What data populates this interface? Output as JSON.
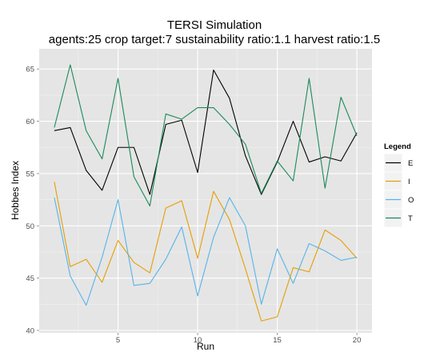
{
  "chart_data": {
    "type": "line",
    "title": "TERSI Simulation",
    "subtitle": "agents:25 crop target:7 sustainability ratio:1.1 harvest ratio:1.5",
    "xlabel": "Run",
    "ylabel": "Hobbes Index",
    "xlim": [
      0.05,
      20.95
    ],
    "ylim": [
      39.77,
      66.93
    ],
    "x_ticks": [
      5,
      10,
      15,
      20
    ],
    "y_ticks": [
      40,
      45,
      50,
      55,
      60,
      65
    ],
    "grid": true,
    "legend": {
      "title": "Legend",
      "position": "right"
    },
    "x": [
      1,
      2,
      3,
      4,
      5,
      6,
      7,
      8,
      9,
      10,
      11,
      12,
      13,
      14,
      15,
      16,
      17,
      18,
      19,
      20
    ],
    "series": [
      {
        "name": "E",
        "color": "#000000",
        "values": [
          59.1,
          59.4,
          55.3,
          53.4,
          57.5,
          57.5,
          53.0,
          59.7,
          60.1,
          55.1,
          64.9,
          62.2,
          56.7,
          53.0,
          56.1,
          60.0,
          56.1,
          56.6,
          56.2,
          58.9
        ]
      },
      {
        "name": "I",
        "color": "#e69f00",
        "values": [
          54.2,
          46.1,
          46.8,
          44.6,
          48.6,
          46.5,
          45.5,
          51.7,
          52.4,
          46.9,
          53.3,
          50.6,
          45.9,
          40.9,
          41.3,
          46.0,
          45.6,
          49.6,
          48.6,
          46.9
        ]
      },
      {
        "name": "O",
        "color": "#56b4e9",
        "values": [
          52.7,
          45.2,
          42.4,
          47.0,
          52.5,
          44.3,
          44.5,
          46.8,
          49.9,
          43.3,
          48.9,
          52.7,
          50.0,
          42.5,
          47.8,
          44.5,
          48.3,
          47.6,
          46.7,
          47.0
        ]
      },
      {
        "name": "T",
        "color": "#1b8a5a",
        "values": [
          59.4,
          65.4,
          59.1,
          56.4,
          64.1,
          54.7,
          51.9,
          60.7,
          60.2,
          61.3,
          61.3,
          59.7,
          57.8,
          53.1,
          56.2,
          54.3,
          64.1,
          53.6,
          62.3,
          58.6
        ]
      }
    ]
  }
}
